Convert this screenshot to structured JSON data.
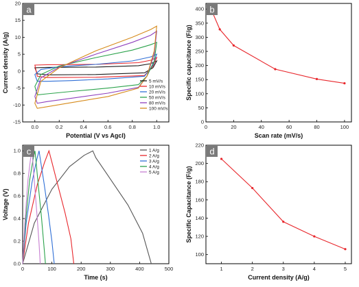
{
  "chart_data": [
    {
      "panel_label": "a",
      "type": "line",
      "xlabel": "Potential (V vs Agcl)",
      "ylabel": "Current density (A/g)",
      "xlim": [
        -0.1,
        1.1
      ],
      "ylim": [
        -15,
        20
      ],
      "xticks": [
        "0.0",
        "0.2",
        "0.4",
        "0.6",
        "0.8",
        "1.0"
      ],
      "xtick_values": [
        0,
        0.2,
        0.4,
        0.6,
        0.8,
        1.0
      ],
      "yticks": [
        "-15",
        "-10",
        "-5",
        "0",
        "5",
        "10",
        "15",
        "20"
      ],
      "ytick_values": [
        -15,
        -10,
        -5,
        0,
        5,
        10,
        15,
        20
      ],
      "legend_position": "bottom-right",
      "series": [
        {
          "name": "5 mV/s",
          "color": "#1a1a1a",
          "upper": [
            [
              0,
              1.0
            ],
            [
              0.1,
              1.1
            ],
            [
              0.5,
              1.2
            ],
            [
              0.85,
              1.6
            ],
            [
              0.95,
              2.2
            ],
            [
              1.0,
              3.0
            ]
          ],
          "lower": [
            [
              1.0,
              3.0
            ],
            [
              0.97,
              1.0
            ],
            [
              0.9,
              -0.5
            ],
            [
              0.5,
              -1.0
            ],
            [
              0.1,
              -1.1
            ],
            [
              0.02,
              -0.8
            ],
            [
              0,
              1.0
            ]
          ]
        },
        {
          "name": "10 mV/s",
          "color": "#e8262b",
          "upper": [
            [
              0,
              1.8
            ],
            [
              0.1,
              1.9
            ],
            [
              0.5,
              2.0
            ],
            [
              0.85,
              2.5
            ],
            [
              0.95,
              3.2
            ],
            [
              1.0,
              4.0
            ]
          ],
          "lower": [
            [
              1.0,
              4.0
            ],
            [
              0.97,
              1.5
            ],
            [
              0.9,
              -1.3
            ],
            [
              0.5,
              -1.8
            ],
            [
              0.1,
              -1.9
            ],
            [
              0.02,
              -1.5
            ],
            [
              0,
              1.8
            ]
          ]
        },
        {
          "name": "20 mV/s",
          "color": "#2f6fd6",
          "upper": [
            [
              0,
              -1.0
            ],
            [
              0.05,
              0.5
            ],
            [
              0.2,
              1.3
            ],
            [
              0.5,
              2.0
            ],
            [
              0.8,
              3.0
            ],
            [
              0.95,
              4.2
            ],
            [
              1.0,
              5.0
            ]
          ],
          "lower": [
            [
              1.0,
              5.0
            ],
            [
              0.97,
              1.8
            ],
            [
              0.9,
              -1.5
            ],
            [
              0.6,
              -2.3
            ],
            [
              0.3,
              -2.8
            ],
            [
              0.1,
              -3.0
            ],
            [
              0.02,
              -3.0
            ],
            [
              0,
              -1.0
            ]
          ]
        },
        {
          "name": "50 mV/s",
          "color": "#2aa24a",
          "upper": [
            [
              0,
              -4.5
            ],
            [
              0.05,
              -1.0
            ],
            [
              0.2,
              1.5
            ],
            [
              0.5,
              4.0
            ],
            [
              0.8,
              6.2
            ],
            [
              0.95,
              7.8
            ],
            [
              1.0,
              8.5
            ]
          ],
          "lower": [
            [
              1.0,
              8.5
            ],
            [
              0.98,
              3.0
            ],
            [
              0.92,
              -1.5
            ],
            [
              0.85,
              -4.0
            ],
            [
              0.6,
              -5.0
            ],
            [
              0.3,
              -6.0
            ],
            [
              0.1,
              -6.7
            ],
            [
              0.02,
              -7.0
            ],
            [
              0,
              -4.5
            ]
          ]
        },
        {
          "name": "80 mV/s",
          "color": "#8e3fbd",
          "upper": [
            [
              0,
              -7.5
            ],
            [
              0.05,
              -2.0
            ],
            [
              0.2,
              1.2
            ],
            [
              0.5,
              5.0
            ],
            [
              0.8,
              8.5
            ],
            [
              0.95,
              10.6
            ],
            [
              1.0,
              11.8
            ]
          ],
          "lower": [
            [
              1.0,
              11.8
            ],
            [
              0.98,
              5.0
            ],
            [
              0.92,
              -1.5
            ],
            [
              0.85,
              -4.8
            ],
            [
              0.6,
              -6.5
            ],
            [
              0.3,
              -8.0
            ],
            [
              0.1,
              -9.0
            ],
            [
              0.02,
              -9.5
            ],
            [
              0,
              -7.5
            ]
          ]
        },
        {
          "name": "100 mV/s",
          "color": "#d68a1a",
          "upper": [
            [
              0,
              -9.5
            ],
            [
              0.05,
              -3.0
            ],
            [
              0.2,
              1.0
            ],
            [
              0.5,
              6.0
            ],
            [
              0.8,
              10.0
            ],
            [
              0.95,
              12.3
            ],
            [
              1.0,
              13.3
            ]
          ],
          "lower": [
            [
              1.0,
              13.3
            ],
            [
              0.98,
              6.0
            ],
            [
              0.92,
              -1.5
            ],
            [
              0.85,
              -5.0
            ],
            [
              0.6,
              -7.5
            ],
            [
              0.3,
              -9.3
            ],
            [
              0.1,
              -10.5
            ],
            [
              0.02,
              -11.0
            ],
            [
              0,
              -9.5
            ]
          ]
        }
      ]
    },
    {
      "panel_label": "b",
      "type": "line",
      "xlabel": "Scan rate (mV/s)",
      "ylabel": "Specific capacitance (F/g)",
      "xlim": [
        0,
        105
      ],
      "ylim": [
        0,
        420
      ],
      "xticks": [
        "0",
        "20",
        "40",
        "60",
        "80",
        "100"
      ],
      "xtick_values": [
        0,
        20,
        40,
        60,
        80,
        100
      ],
      "yticks": [
        "0",
        "50",
        "100",
        "150",
        "200",
        "250",
        "300",
        "350",
        "400"
      ],
      "ytick_values": [
        0,
        50,
        100,
        150,
        200,
        250,
        300,
        350,
        400
      ],
      "series": [
        {
          "color": "#e8262b",
          "x": [
            5,
            10,
            20,
            50,
            80,
            100
          ],
          "y": [
            385,
            328,
            271,
            187,
            152,
            137
          ]
        }
      ]
    },
    {
      "panel_label": "c",
      "type": "line",
      "xlabel": "Time (s)",
      "ylabel": "Voltage (V)",
      "xlim": [
        0,
        500
      ],
      "ylim": [
        0,
        1.05
      ],
      "xticks": [
        "0",
        "100",
        "200",
        "300",
        "400",
        "500"
      ],
      "xtick_values": [
        0,
        100,
        200,
        300,
        400,
        500
      ],
      "yticks": [
        "0.0",
        "0.2",
        "0.4",
        "0.6",
        "0.8",
        "1.0"
      ],
      "ytick_values": [
        0,
        0.2,
        0.4,
        0.6,
        0.8,
        1.0
      ],
      "legend_position": "top-right",
      "series": [
        {
          "name": "1 A/g",
          "color": "#555555",
          "points": [
            [
              0,
              0
            ],
            [
              40,
              0.36
            ],
            [
              100,
              0.66
            ],
            [
              160,
              0.86
            ],
            [
              210,
              0.96
            ],
            [
              240,
              1.0
            ],
            [
              250,
              0.94
            ],
            [
              300,
              0.75
            ],
            [
              360,
              0.52
            ],
            [
              410,
              0.27
            ],
            [
              440,
              0
            ]
          ]
        },
        {
          "name": "2 A/g",
          "color": "#e8262b",
          "points": [
            [
              0,
              0
            ],
            [
              20,
              0.36
            ],
            [
              50,
              0.7
            ],
            [
              75,
              0.9
            ],
            [
              90,
              1.0
            ],
            [
              100,
              0.9
            ],
            [
              120,
              0.7
            ],
            [
              145,
              0.45
            ],
            [
              165,
              0.22
            ],
            [
              175,
              0
            ]
          ]
        },
        {
          "name": "3 A/g",
          "color": "#2f6fd6",
          "points": [
            [
              0,
              0
            ],
            [
              12,
              0.36
            ],
            [
              32,
              0.72
            ],
            [
              48,
              0.92
            ],
            [
              56,
              1.0
            ],
            [
              62,
              0.9
            ],
            [
              74,
              0.7
            ],
            [
              88,
              0.44
            ],
            [
              100,
              0.2
            ],
            [
              108,
              0
            ]
          ]
        },
        {
          "name": "4 A/g",
          "color": "#2aa24a",
          "points": [
            [
              0,
              0
            ],
            [
              10,
              0.38
            ],
            [
              24,
              0.74
            ],
            [
              36,
              0.93
            ],
            [
              42,
              1.0
            ],
            [
              46,
              0.9
            ],
            [
              54,
              0.68
            ],
            [
              64,
              0.42
            ],
            [
              72,
              0.18
            ],
            [
              78,
              0
            ]
          ]
        },
        {
          "name": "5 A/g",
          "color": "#c77fd1",
          "points": [
            [
              0,
              0
            ],
            [
              8,
              0.38
            ],
            [
              18,
              0.74
            ],
            [
              27,
              0.93
            ],
            [
              32,
              1.0
            ],
            [
              35,
              0.9
            ],
            [
              42,
              0.66
            ],
            [
              50,
              0.4
            ],
            [
              56,
              0.18
            ],
            [
              60,
              0
            ]
          ]
        }
      ]
    },
    {
      "panel_label": "d",
      "type": "line",
      "xlabel": "Current density (A/g)",
      "ylabel": "Specific Capacitance (F/g)",
      "xlim": [
        0.5,
        5.2
      ],
      "ylim": [
        90,
        220
      ],
      "xticks": [
        "1",
        "2",
        "3",
        "4",
        "5"
      ],
      "xtick_values": [
        1,
        2,
        3,
        4,
        5
      ],
      "yticks": [
        "100",
        "120",
        "140",
        "160",
        "180",
        "200",
        "220"
      ],
      "ytick_values": [
        100,
        120,
        140,
        160,
        180,
        200,
        220
      ],
      "series": [
        {
          "color": "#e8262b",
          "x": [
            1,
            2,
            3,
            4,
            5
          ],
          "y": [
            205,
            173,
            136,
            120,
            106
          ]
        }
      ]
    }
  ]
}
